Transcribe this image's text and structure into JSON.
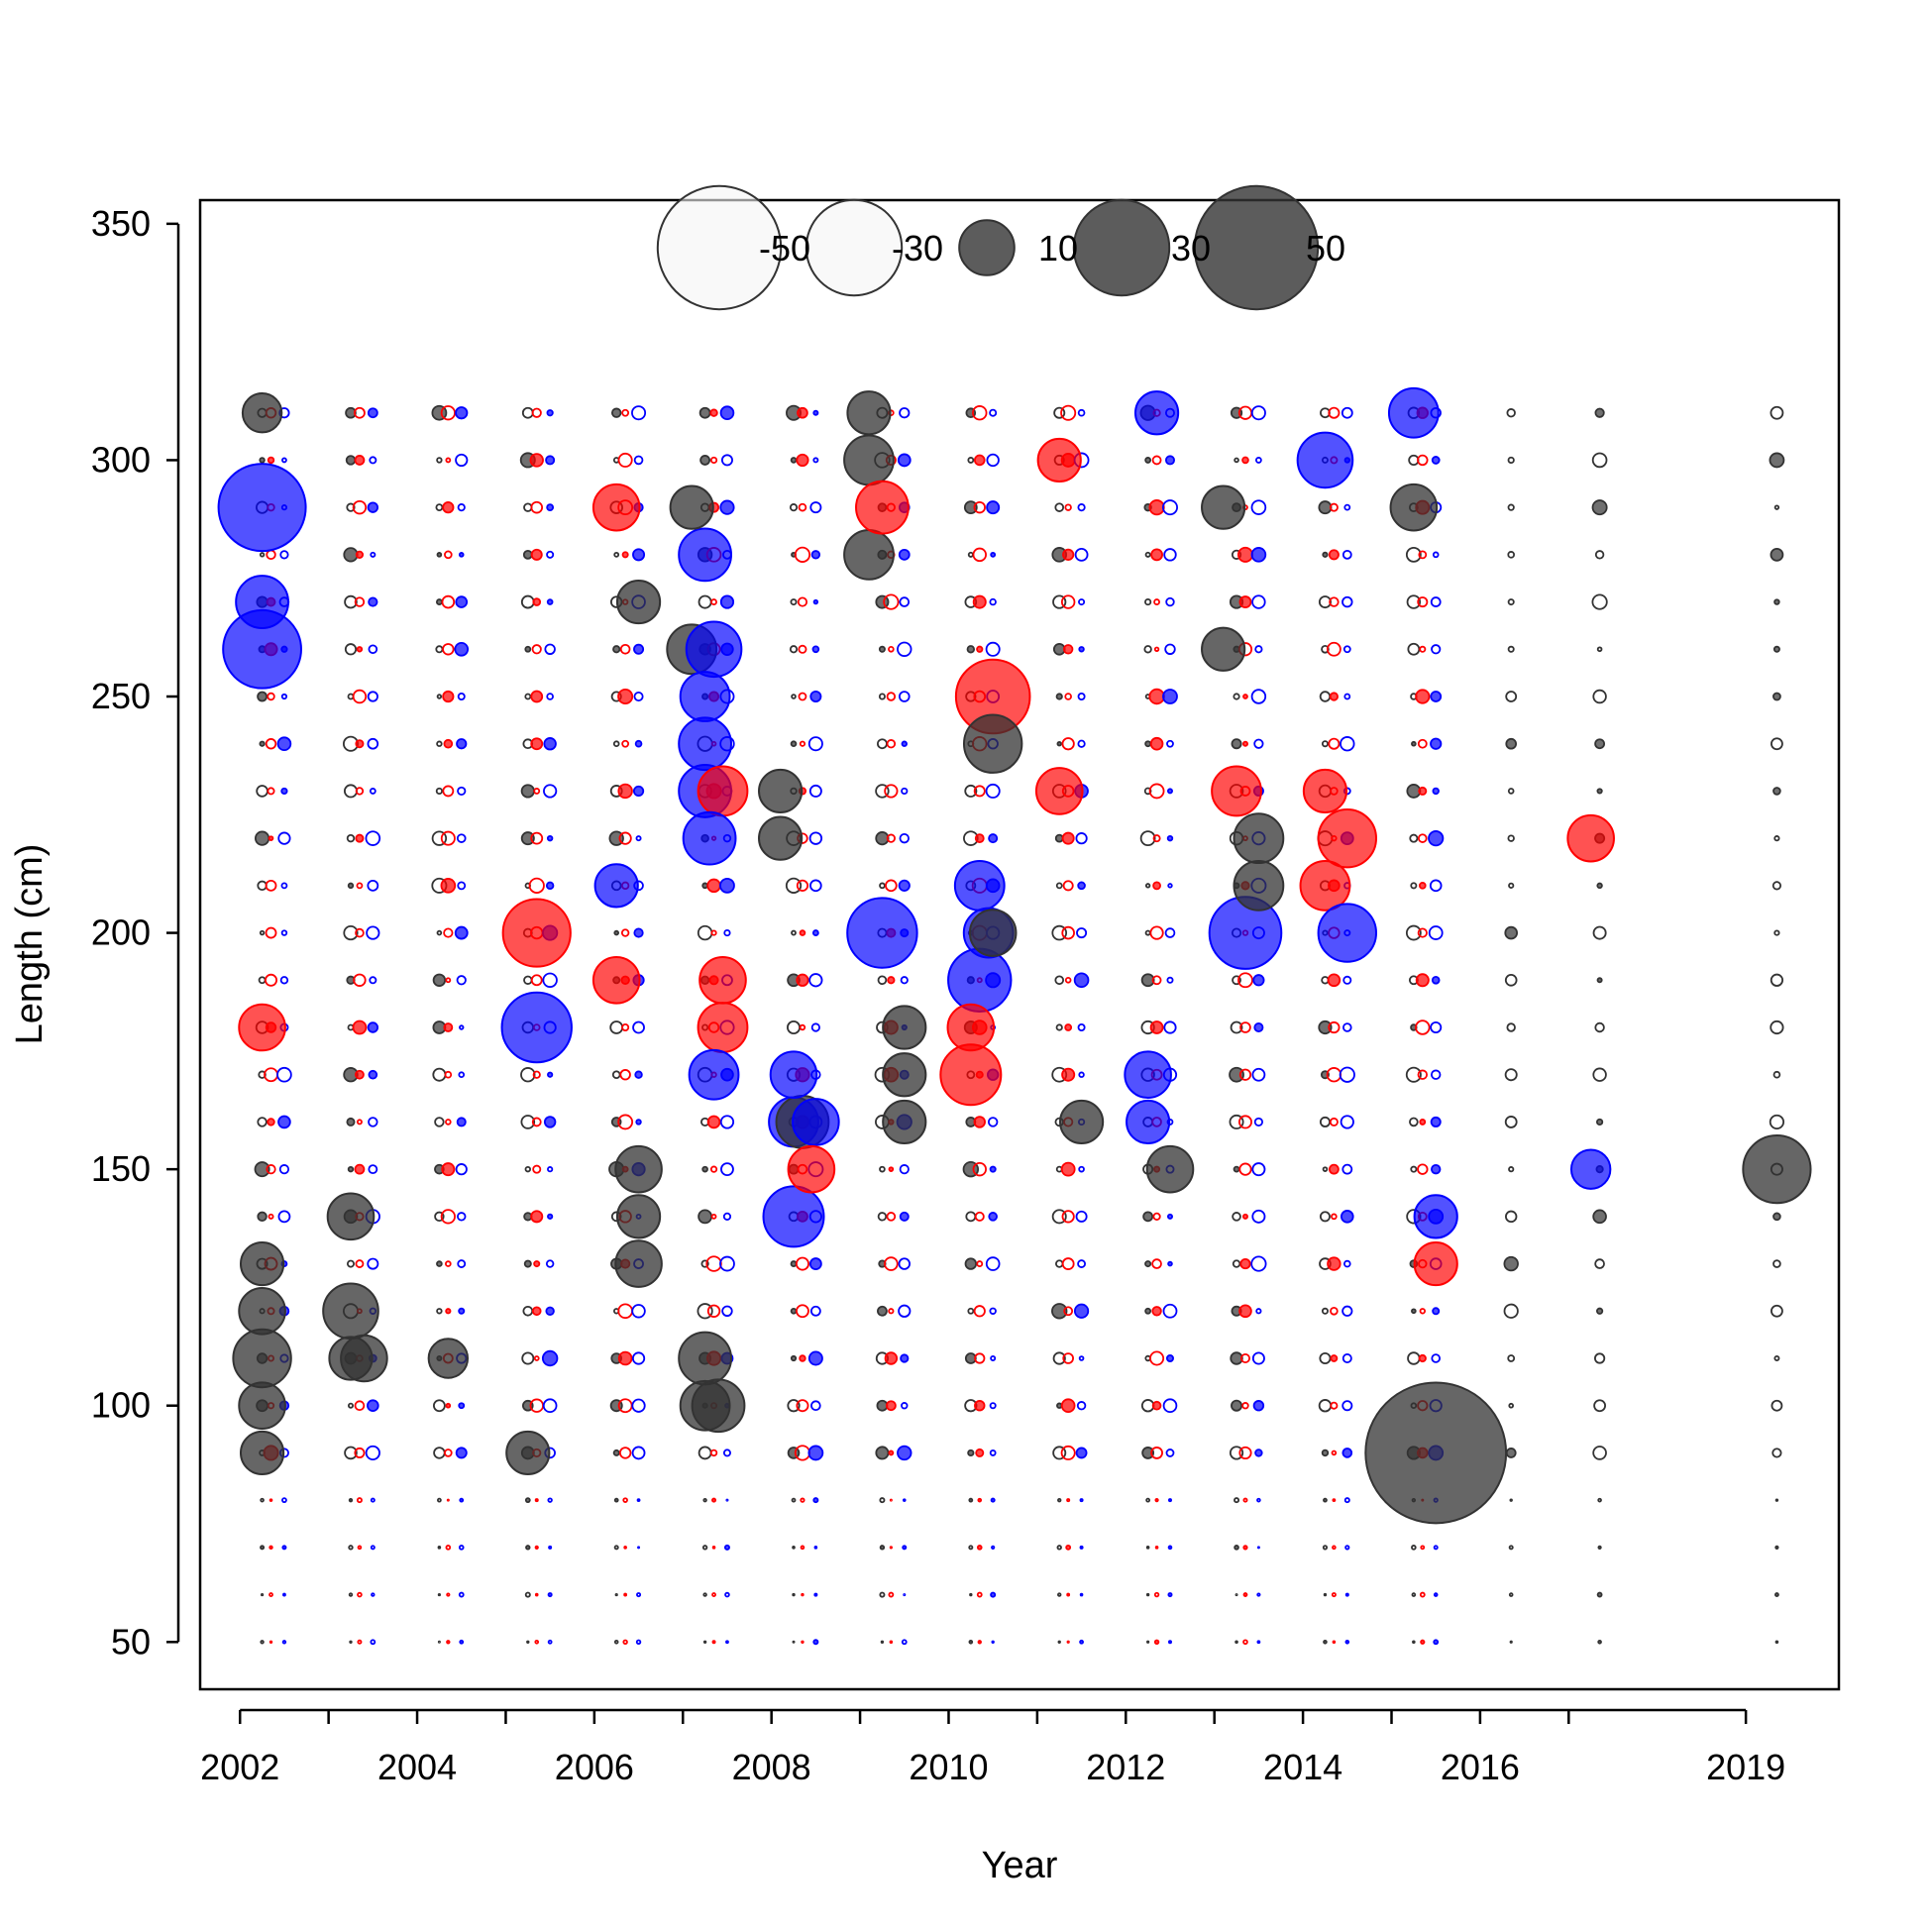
{
  "chart_data": {
    "type": "scatter",
    "subtype": "bubble",
    "xlabel": "Year",
    "ylabel": "Length (cm)",
    "xlim": [
      2001.55,
      2020.05
    ],
    "ylim": [
      40,
      355
    ],
    "x_ticks": [
      2002,
      2004,
      2006,
      2008,
      2010,
      2012,
      2014,
      2016,
      2019
    ],
    "x_tick_marks": [
      2002,
      2003,
      2004,
      2005,
      2006,
      2007,
      2008,
      2009,
      2010,
      2011,
      2012,
      2013,
      2014,
      2015,
      2016,
      2017,
      2019
    ],
    "y_ticks": [
      50,
      100,
      150,
      200,
      250,
      300,
      350
    ],
    "colors": {
      "positive": "#333333",
      "negative": "#333333",
      "series_red": "#FF0000",
      "series_blue": "#0000FF"
    },
    "legend": {
      "placement": "top-center",
      "values": [
        -50,
        -30,
        10,
        30,
        50
      ],
      "labels": [
        "-50",
        "-30",
        "10",
        "30",
        "50"
      ]
    },
    "years": [
      2002,
      2003,
      2004,
      2005,
      2006,
      2007,
      2008,
      2009,
      2010,
      2011,
      2012,
      2013,
      2014,
      2015,
      2016,
      2017,
      2019
    ],
    "length_bins": [
      50,
      60,
      70,
      80,
      90,
      100,
      110,
      120,
      130,
      140,
      150,
      160,
      170,
      180,
      190,
      200,
      210,
      220,
      230,
      240,
      250,
      260,
      270,
      280,
      290,
      300,
      310
    ],
    "notable_points": [
      {
        "x": 2002.25,
        "y": 290,
        "value": -25,
        "series": "blue"
      },
      {
        "x": 2002.25,
        "y": 260,
        "value": -20,
        "series": "blue"
      },
      {
        "x": 2002.25,
        "y": 270,
        "value": -9,
        "series": "blue"
      },
      {
        "x": 2002.25,
        "y": 110,
        "value": 11,
        "series": "black"
      },
      {
        "x": 2002.25,
        "y": 120,
        "value": 7,
        "series": "black"
      },
      {
        "x": 2002.25,
        "y": 100,
        "value": 7,
        "series": "black"
      },
      {
        "x": 2002.25,
        "y": 130,
        "value": 6,
        "series": "black"
      },
      {
        "x": 2002.25,
        "y": 90,
        "value": 6,
        "series": "black"
      },
      {
        "x": 2002.25,
        "y": 180,
        "value": -7,
        "series": "red"
      },
      {
        "x": 2002.25,
        "y": 310,
        "value": 5,
        "series": "black"
      },
      {
        "x": 2003.25,
        "y": 120,
        "value": 10,
        "series": "black"
      },
      {
        "x": 2003.25,
        "y": 140,
        "value": 7,
        "series": "black"
      },
      {
        "x": 2003.25,
        "y": 110,
        "value": 6,
        "series": "black"
      },
      {
        "x": 2003.4,
        "y": 110,
        "value": 7,
        "series": "black"
      },
      {
        "x": 2004.35,
        "y": 110,
        "value": 5,
        "series": "black"
      },
      {
        "x": 2005.35,
        "y": 200,
        "value": -15,
        "series": "red"
      },
      {
        "x": 2005.35,
        "y": 180,
        "value": -16,
        "series": "blue"
      },
      {
        "x": 2005.25,
        "y": 90,
        "value": 6,
        "series": "black"
      },
      {
        "x": 2006.25,
        "y": 290,
        "value": -7,
        "series": "red"
      },
      {
        "x": 2006.25,
        "y": 190,
        "value": -7,
        "series": "red"
      },
      {
        "x": 2006.25,
        "y": 210,
        "value": -6,
        "series": "blue"
      },
      {
        "x": 2006.5,
        "y": 270,
        "value": 6,
        "series": "black"
      },
      {
        "x": 2006.5,
        "y": 150,
        "value": 7,
        "series": "black"
      },
      {
        "x": 2006.5,
        "y": 140,
        "value": 6,
        "series": "black"
      },
      {
        "x": 2006.5,
        "y": 130,
        "value": 7,
        "series": "black"
      },
      {
        "x": 2007.1,
        "y": 260,
        "value": 8,
        "series": "black"
      },
      {
        "x": 2007.25,
        "y": 280,
        "value": -9,
        "series": "blue"
      },
      {
        "x": 2007.35,
        "y": 260,
        "value": -10,
        "series": "blue"
      },
      {
        "x": 2007.25,
        "y": 250,
        "value": -8,
        "series": "blue"
      },
      {
        "x": 2007.25,
        "y": 240,
        "value": -9,
        "series": "blue"
      },
      {
        "x": 2007.25,
        "y": 230,
        "value": -9,
        "series": "blue"
      },
      {
        "x": 2007.45,
        "y": 230,
        "value": -8,
        "series": "red"
      },
      {
        "x": 2007.3,
        "y": 220,
        "value": -9,
        "series": "blue"
      },
      {
        "x": 2007.45,
        "y": 180,
        "value": -8,
        "series": "red"
      },
      {
        "x": 2007.45,
        "y": 190,
        "value": -7,
        "series": "red"
      },
      {
        "x": 2007.35,
        "y": 170,
        "value": -8,
        "series": "blue"
      },
      {
        "x": 2007.25,
        "y": 110,
        "value": 9,
        "series": "black"
      },
      {
        "x": 2007.25,
        "y": 100,
        "value": 8,
        "series": "black"
      },
      {
        "x": 2007.4,
        "y": 100,
        "value": 9,
        "series": "black"
      },
      {
        "x": 2007.1,
        "y": 290,
        "value": 6,
        "series": "black"
      },
      {
        "x": 2008.1,
        "y": 230,
        "value": 6,
        "series": "black"
      },
      {
        "x": 2008.1,
        "y": 220,
        "value": 6,
        "series": "black"
      },
      {
        "x": 2008.25,
        "y": 160,
        "value": -8,
        "series": "blue"
      },
      {
        "x": 2008.35,
        "y": 160,
        "value": 9,
        "series": "black"
      },
      {
        "x": 2008.5,
        "y": 160,
        "value": -7,
        "series": "blue"
      },
      {
        "x": 2008.25,
        "y": 140,
        "value": -12,
        "series": "blue"
      },
      {
        "x": 2008.45,
        "y": 150,
        "value": -7,
        "series": "red"
      },
      {
        "x": 2008.25,
        "y": 170,
        "value": -7,
        "series": "blue"
      },
      {
        "x": 2009.1,
        "y": 310,
        "value": 6,
        "series": "black"
      },
      {
        "x": 2009.1,
        "y": 300,
        "value": 8,
        "series": "black"
      },
      {
        "x": 2009.1,
        "y": 280,
        "value": 8,
        "series": "black"
      },
      {
        "x": 2009.25,
        "y": 290,
        "value": -9,
        "series": "red"
      },
      {
        "x": 2009.25,
        "y": 200,
        "value": -16,
        "series": "blue"
      },
      {
        "x": 2009.5,
        "y": 180,
        "value": 6,
        "series": "black"
      },
      {
        "x": 2009.5,
        "y": 160,
        "value": 6,
        "series": "black"
      },
      {
        "x": 2009.5,
        "y": 170,
        "value": 6,
        "series": "black"
      },
      {
        "x": 2010.5,
        "y": 250,
        "value": -18,
        "series": "red"
      },
      {
        "x": 2010.5,
        "y": 240,
        "value": 11,
        "series": "black"
      },
      {
        "x": 2010.35,
        "y": 190,
        "value": -13,
        "series": "blue"
      },
      {
        "x": 2010.25,
        "y": 170,
        "value": -12,
        "series": "red"
      },
      {
        "x": 2010.45,
        "y": 200,
        "value": -8,
        "series": "blue"
      },
      {
        "x": 2010.35,
        "y": 210,
        "value": -8,
        "series": "blue"
      },
      {
        "x": 2010.25,
        "y": 180,
        "value": -7,
        "series": "red"
      },
      {
        "x": 2010.5,
        "y": 200,
        "value": 7,
        "series": "black"
      },
      {
        "x": 2011.25,
        "y": 300,
        "value": -6,
        "series": "red"
      },
      {
        "x": 2011.25,
        "y": 230,
        "value": -7,
        "series": "red"
      },
      {
        "x": 2011.5,
        "y": 160,
        "value": 6,
        "series": "black"
      },
      {
        "x": 2012.25,
        "y": 170,
        "value": -7,
        "series": "blue"
      },
      {
        "x": 2012.25,
        "y": 160,
        "value": -6,
        "series": "blue"
      },
      {
        "x": 2012.5,
        "y": 150,
        "value": 7,
        "series": "black"
      },
      {
        "x": 2012.35,
        "y": 310,
        "value": -6,
        "series": "blue"
      },
      {
        "x": 2013.35,
        "y": 200,
        "value": -17,
        "series": "blue"
      },
      {
        "x": 2013.5,
        "y": 220,
        "value": 8,
        "series": "black"
      },
      {
        "x": 2013.5,
        "y": 210,
        "value": 8,
        "series": "black"
      },
      {
        "x": 2013.25,
        "y": 230,
        "value": -8,
        "series": "red"
      },
      {
        "x": 2013.1,
        "y": 290,
        "value": 6,
        "series": "black"
      },
      {
        "x": 2013.1,
        "y": 260,
        "value": 6,
        "series": "black"
      },
      {
        "x": 2014.25,
        "y": 300,
        "value": -10,
        "series": "blue"
      },
      {
        "x": 2014.5,
        "y": 220,
        "value": -11,
        "series": "red"
      },
      {
        "x": 2014.25,
        "y": 210,
        "value": -8,
        "series": "red"
      },
      {
        "x": 2014.5,
        "y": 200,
        "value": -11,
        "series": "blue"
      },
      {
        "x": 2014.25,
        "y": 230,
        "value": -6,
        "series": "red"
      },
      {
        "x": 2015.25,
        "y": 310,
        "value": -8,
        "series": "blue"
      },
      {
        "x": 2015.25,
        "y": 290,
        "value": 7,
        "series": "black"
      },
      {
        "x": 2015.5,
        "y": 90,
        "value": 65,
        "series": "black"
      },
      {
        "x": 2015.5,
        "y": 140,
        "value": -6,
        "series": "blue"
      },
      {
        "x": 2015.5,
        "y": 130,
        "value": -6,
        "series": "red"
      },
      {
        "x": 2017.25,
        "y": 220,
        "value": -7,
        "series": "red"
      },
      {
        "x": 2017.25,
        "y": 150,
        "value": -5,
        "series": "blue"
      },
      {
        "x": 2019.35,
        "y": 150,
        "value": 15,
        "series": "black"
      }
    ]
  }
}
